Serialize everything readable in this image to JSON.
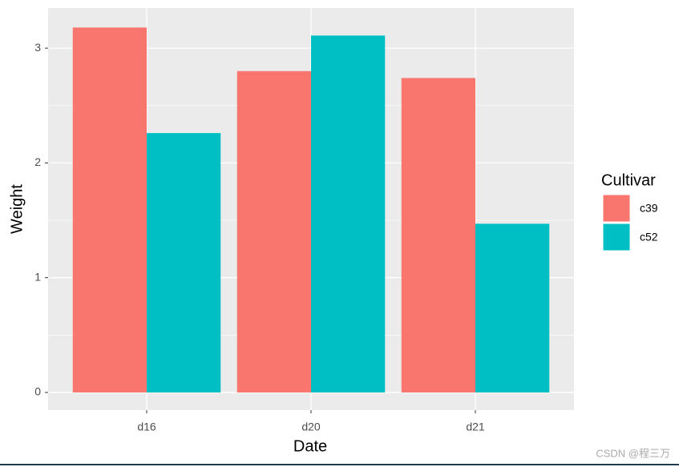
{
  "chart_data": {
    "type": "bar",
    "x_label": "Date",
    "y_label": "Weight",
    "categories": [
      "d16",
      "d20",
      "d21"
    ],
    "series": [
      {
        "name": "c39",
        "color": "#f8766d",
        "values": [
          3.18,
          2.8,
          2.74
        ]
      },
      {
        "name": "c52",
        "color": "#00bfc4",
        "values": [
          2.26,
          3.11,
          1.47
        ]
      }
    ],
    "legend_title": "Cultivar",
    "legend_position": "right",
    "ylim": [
      -0.154,
      3.35
    ],
    "yticks": [
      0,
      1,
      2,
      3
    ],
    "grid": true
  },
  "watermark": "CSDN @程三万"
}
